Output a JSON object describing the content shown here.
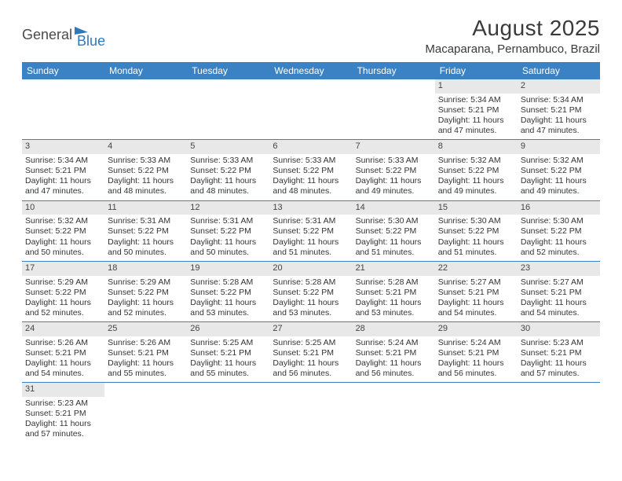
{
  "logo": {
    "text1": "General",
    "text2": "Blue",
    "icon_color": "#2f78bd"
  },
  "title": "August 2025",
  "location": "Macaparana, Pernambuco, Brazil",
  "header_bg": "#3b82c4",
  "daynum_bg": "#e8e8e8",
  "border_color": "#3b82c4",
  "weekdays": [
    "Sunday",
    "Monday",
    "Tuesday",
    "Wednesday",
    "Thursday",
    "Friday",
    "Saturday"
  ],
  "weeks": [
    [
      null,
      null,
      null,
      null,
      null,
      {
        "n": "1",
        "sr": "5:34 AM",
        "ss": "5:21 PM",
        "dl": "11 hours and 47 minutes."
      },
      {
        "n": "2",
        "sr": "5:34 AM",
        "ss": "5:21 PM",
        "dl": "11 hours and 47 minutes."
      }
    ],
    [
      {
        "n": "3",
        "sr": "5:34 AM",
        "ss": "5:21 PM",
        "dl": "11 hours and 47 minutes."
      },
      {
        "n": "4",
        "sr": "5:33 AM",
        "ss": "5:22 PM",
        "dl": "11 hours and 48 minutes."
      },
      {
        "n": "5",
        "sr": "5:33 AM",
        "ss": "5:22 PM",
        "dl": "11 hours and 48 minutes."
      },
      {
        "n": "6",
        "sr": "5:33 AM",
        "ss": "5:22 PM",
        "dl": "11 hours and 48 minutes."
      },
      {
        "n": "7",
        "sr": "5:33 AM",
        "ss": "5:22 PM",
        "dl": "11 hours and 49 minutes."
      },
      {
        "n": "8",
        "sr": "5:32 AM",
        "ss": "5:22 PM",
        "dl": "11 hours and 49 minutes."
      },
      {
        "n": "9",
        "sr": "5:32 AM",
        "ss": "5:22 PM",
        "dl": "11 hours and 49 minutes."
      }
    ],
    [
      {
        "n": "10",
        "sr": "5:32 AM",
        "ss": "5:22 PM",
        "dl": "11 hours and 50 minutes."
      },
      {
        "n": "11",
        "sr": "5:31 AM",
        "ss": "5:22 PM",
        "dl": "11 hours and 50 minutes."
      },
      {
        "n": "12",
        "sr": "5:31 AM",
        "ss": "5:22 PM",
        "dl": "11 hours and 50 minutes."
      },
      {
        "n": "13",
        "sr": "5:31 AM",
        "ss": "5:22 PM",
        "dl": "11 hours and 51 minutes."
      },
      {
        "n": "14",
        "sr": "5:30 AM",
        "ss": "5:22 PM",
        "dl": "11 hours and 51 minutes."
      },
      {
        "n": "15",
        "sr": "5:30 AM",
        "ss": "5:22 PM",
        "dl": "11 hours and 51 minutes."
      },
      {
        "n": "16",
        "sr": "5:30 AM",
        "ss": "5:22 PM",
        "dl": "11 hours and 52 minutes."
      }
    ],
    [
      {
        "n": "17",
        "sr": "5:29 AM",
        "ss": "5:22 PM",
        "dl": "11 hours and 52 minutes."
      },
      {
        "n": "18",
        "sr": "5:29 AM",
        "ss": "5:22 PM",
        "dl": "11 hours and 52 minutes."
      },
      {
        "n": "19",
        "sr": "5:28 AM",
        "ss": "5:22 PM",
        "dl": "11 hours and 53 minutes."
      },
      {
        "n": "20",
        "sr": "5:28 AM",
        "ss": "5:22 PM",
        "dl": "11 hours and 53 minutes."
      },
      {
        "n": "21",
        "sr": "5:28 AM",
        "ss": "5:21 PM",
        "dl": "11 hours and 53 minutes."
      },
      {
        "n": "22",
        "sr": "5:27 AM",
        "ss": "5:21 PM",
        "dl": "11 hours and 54 minutes."
      },
      {
        "n": "23",
        "sr": "5:27 AM",
        "ss": "5:21 PM",
        "dl": "11 hours and 54 minutes."
      }
    ],
    [
      {
        "n": "24",
        "sr": "5:26 AM",
        "ss": "5:21 PM",
        "dl": "11 hours and 54 minutes."
      },
      {
        "n": "25",
        "sr": "5:26 AM",
        "ss": "5:21 PM",
        "dl": "11 hours and 55 minutes."
      },
      {
        "n": "26",
        "sr": "5:25 AM",
        "ss": "5:21 PM",
        "dl": "11 hours and 55 minutes."
      },
      {
        "n": "27",
        "sr": "5:25 AM",
        "ss": "5:21 PM",
        "dl": "11 hours and 56 minutes."
      },
      {
        "n": "28",
        "sr": "5:24 AM",
        "ss": "5:21 PM",
        "dl": "11 hours and 56 minutes."
      },
      {
        "n": "29",
        "sr": "5:24 AM",
        "ss": "5:21 PM",
        "dl": "11 hours and 56 minutes."
      },
      {
        "n": "30",
        "sr": "5:23 AM",
        "ss": "5:21 PM",
        "dl": "11 hours and 57 minutes."
      }
    ],
    [
      {
        "n": "31",
        "sr": "5:23 AM",
        "ss": "5:21 PM",
        "dl": "11 hours and 57 minutes."
      },
      null,
      null,
      null,
      null,
      null,
      null
    ]
  ],
  "labels": {
    "sunrise": "Sunrise: ",
    "sunset": "Sunset: ",
    "daylight": "Daylight: "
  }
}
